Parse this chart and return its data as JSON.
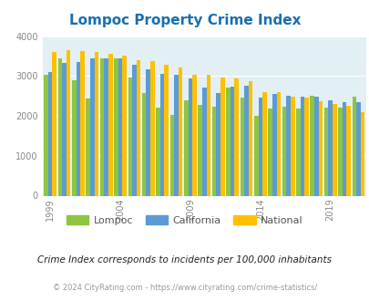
{
  "title": "Lompoc Property Crime Index",
  "years": [
    1999,
    2000,
    2001,
    2002,
    2003,
    2004,
    2005,
    2006,
    2007,
    2008,
    2009,
    2010,
    2011,
    2012,
    2013,
    2014,
    2015,
    2016,
    2017,
    2018,
    2019,
    2020,
    2021
  ],
  "lompoc": [
    3020,
    3450,
    2890,
    2440,
    3440,
    3440,
    2960,
    2580,
    2200,
    2030,
    2380,
    2270,
    2240,
    2720,
    2460,
    1990,
    2180,
    2220,
    2190,
    2500,
    2200,
    2210,
    2470
  ],
  "california": [
    3100,
    3320,
    3360,
    3440,
    3440,
    3440,
    3290,
    3170,
    3060,
    3040,
    2940,
    2700,
    2570,
    2730,
    2760,
    2460,
    2560,
    2510,
    2490,
    2470,
    2390,
    2350,
    2350
  ],
  "national": [
    3610,
    3650,
    3620,
    3600,
    3560,
    3510,
    3400,
    3380,
    3280,
    3220,
    3040,
    3020,
    2960,
    2950,
    2860,
    2590,
    2600,
    2490,
    2450,
    2370,
    2290,
    2250,
    2090
  ],
  "bar_colors": {
    "lompoc": "#8dc641",
    "california": "#5b9bd5",
    "national": "#ffc000"
  },
  "bg_color": "#e2eff4",
  "ylim": [
    0,
    4000
  ],
  "yticks": [
    0,
    1000,
    2000,
    3000,
    4000
  ],
  "xtick_years": [
    1999,
    2004,
    2009,
    2014,
    2019
  ],
  "note": "Crime Index corresponds to incidents per 100,000 inhabitants",
  "footer": "© 2024 CityRating.com - https://www.cityrating.com/crime-statistics/"
}
